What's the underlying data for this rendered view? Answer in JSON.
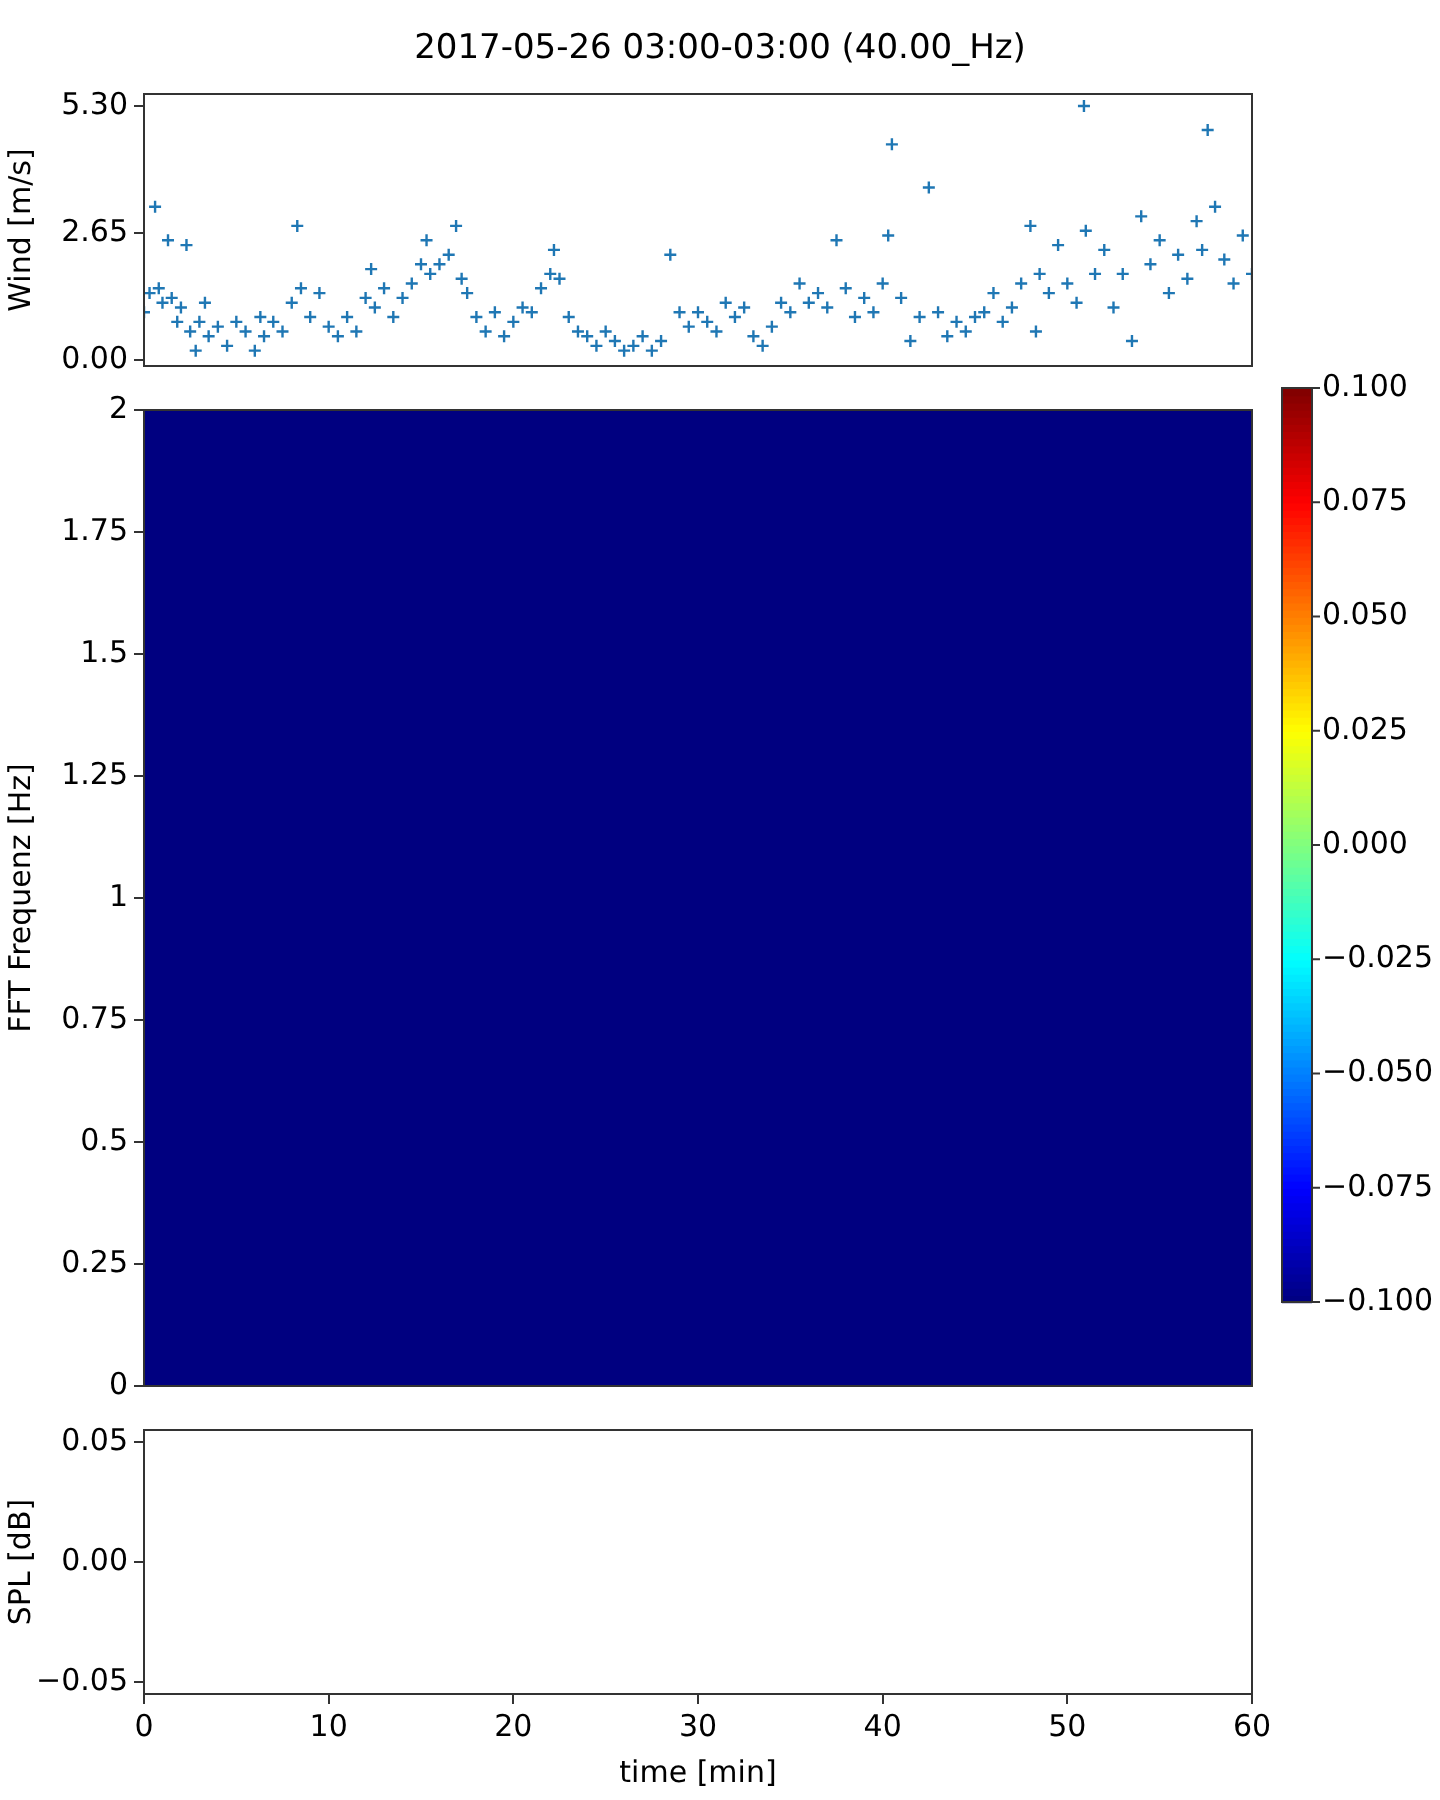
{
  "chart_data": [
    {
      "type": "scatter",
      "title": "2017-05-26 03:00-03:00 (40.00_Hz)",
      "ylabel": "Wind [m/s]",
      "color": "#1f77b4",
      "marker": "cross",
      "xlim": [
        0,
        60
      ],
      "ylim": [
        -0.12,
        5.55
      ],
      "yticks": [
        {
          "value": 0,
          "label": "0.00"
        },
        {
          "value": 2.65,
          "label": "2.65"
        },
        {
          "value": 5.3,
          "label": "5.30"
        }
      ],
      "tick_labels": "y",
      "x": [
        0,
        0.3,
        0.6,
        0.8,
        1.0,
        1.3,
        1.5,
        1.8,
        2.0,
        2.3,
        2.5,
        2.8,
        3.0,
        3.3,
        3.5,
        4.0,
        4.5,
        5.0,
        5.5,
        6.0,
        6.3,
        6.5,
        7.0,
        7.5,
        8.0,
        8.3,
        8.5,
        9.0,
        9.5,
        10.0,
        10.5,
        11.0,
        11.5,
        12.0,
        12.3,
        12.5,
        13.0,
        13.5,
        14.0,
        14.5,
        15.0,
        15.3,
        15.5,
        16.0,
        16.5,
        16.9,
        17.2,
        17.5,
        18.0,
        18.5,
        19.0,
        19.5,
        20.0,
        20.5,
        21.0,
        21.5,
        22.0,
        22.2,
        22.5,
        23.0,
        23.5,
        24.0,
        24.5,
        25.0,
        25.5,
        26.0,
        26.5,
        27.0,
        27.5,
        28.0,
        28.5,
        29.0,
        29.5,
        30.0,
        30.5,
        31.0,
        31.5,
        32.0,
        32.5,
        33.0,
        33.5,
        34.0,
        34.5,
        35.0,
        35.5,
        36.0,
        36.5,
        37.0,
        37.5,
        38.0,
        38.5,
        39.0,
        39.5,
        40.0,
        40.3,
        40.5,
        41.0,
        41.5,
        42.0,
        42.5,
        43.0,
        43.5,
        44.0,
        44.5,
        45.0,
        45.5,
        46.0,
        46.5,
        47.0,
        47.5,
        48.0,
        48.3,
        48.5,
        49.0,
        49.5,
        50.0,
        50.5,
        50.9,
        51.0,
        51.5,
        52.0,
        52.5,
        53.0,
        53.5,
        54.0,
        54.5,
        55.0,
        55.5,
        56.0,
        56.5,
        57.0,
        57.3,
        57.6,
        58.0,
        58.5,
        59.0,
        59.5,
        60.0
      ],
      "values": [
        1.0,
        1.4,
        3.2,
        1.5,
        1.2,
        2.5,
        1.3,
        0.8,
        1.1,
        2.4,
        0.6,
        0.2,
        0.8,
        1.2,
        0.5,
        0.7,
        0.3,
        0.8,
        0.6,
        0.2,
        0.9,
        0.5,
        0.8,
        0.6,
        1.2,
        2.8,
        1.5,
        0.9,
        1.4,
        0.7,
        0.5,
        0.9,
        0.6,
        1.3,
        1.9,
        1.1,
        1.5,
        0.9,
        1.3,
        1.6,
        2.0,
        2.5,
        1.8,
        2.0,
        2.2,
        2.8,
        1.7,
        1.4,
        0.9,
        0.6,
        1.0,
        0.5,
        0.8,
        1.1,
        1.0,
        1.5,
        1.8,
        2.3,
        1.7,
        0.9,
        0.6,
        0.5,
        0.3,
        0.6,
        0.4,
        0.2,
        0.3,
        0.5,
        0.2,
        0.4,
        2.2,
        1.0,
        0.7,
        1.0,
        0.8,
        0.6,
        1.2,
        0.9,
        1.1,
        0.5,
        0.3,
        0.7,
        1.2,
        1.0,
        1.6,
        1.2,
        1.4,
        1.1,
        2.5,
        1.5,
        0.9,
        1.3,
        1.0,
        1.6,
        2.6,
        4.5,
        1.3,
        0.4,
        0.9,
        3.6,
        1.0,
        0.5,
        0.8,
        0.6,
        0.9,
        1.0,
        1.4,
        0.8,
        1.1,
        1.6,
        2.8,
        0.6,
        1.8,
        1.4,
        2.4,
        1.6,
        1.2,
        5.3,
        2.7,
        1.8,
        2.3,
        1.1,
        1.8,
        0.4,
        3.0,
        2.0,
        2.5,
        1.4,
        2.2,
        1.7,
        2.9,
        2.3,
        4.8,
        3.2,
        2.1,
        1.6,
        2.6,
        1.8
      ]
    },
    {
      "type": "heatmap",
      "ylabel": "FFT Frequenz [Hz]",
      "cells": [
        [
          -0.1
        ]
      ],
      "xlim": [
        0,
        60
      ],
      "ylim": [
        0,
        2
      ],
      "yticks": [
        0,
        0.25,
        0.5,
        0.75,
        1,
        1.25,
        1.5,
        1.75,
        2
      ],
      "tick_labels": "y",
      "clim": [
        -0.1,
        0.1
      ],
      "cticks": [
        {
          "value": -0.1,
          "label": "−0.100"
        },
        {
          "value": -0.075,
          "label": "−0.075"
        },
        {
          "value": -0.05,
          "label": "−0.050"
        },
        {
          "value": -0.025,
          "label": "−0.025"
        },
        {
          "value": 0,
          "label": "0.000"
        },
        {
          "value": 0.025,
          "label": "0.025"
        },
        {
          "value": 0.05,
          "label": "0.050"
        },
        {
          "value": 0.075,
          "label": "0.075"
        },
        {
          "value": 0.1,
          "label": "0.100"
        }
      ]
    },
    {
      "type": "line",
      "ylabel": "SPL [dB]",
      "xlabel": "time [min]",
      "xlim": [
        0,
        60
      ],
      "xticks": [
        0,
        10,
        20,
        30,
        40,
        50,
        60
      ],
      "ylim": [
        -0.055,
        0.055
      ],
      "yticks": [
        {
          "value": -0.05,
          "label": "−0.05"
        },
        {
          "value": 0,
          "label": "0.00"
        },
        {
          "value": 0.05,
          "label": "0.05"
        }
      ]
    }
  ]
}
